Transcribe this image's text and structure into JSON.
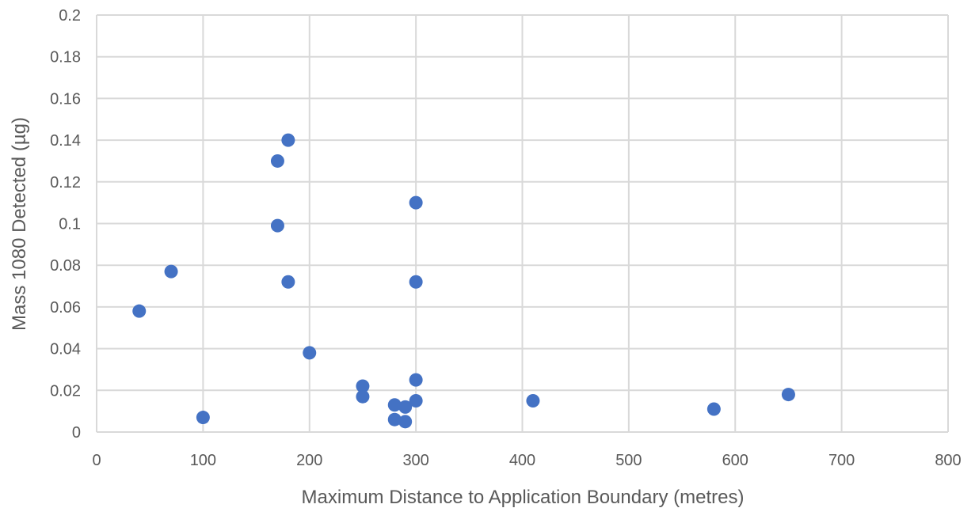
{
  "chart_data": {
    "type": "scatter",
    "title": "",
    "xlabel": "Maximum Distance to Application Boundary (metres)",
    "ylabel": "Mass 1080 Detected (µg)",
    "xlim": [
      0,
      800
    ],
    "ylim": [
      0,
      0.2
    ],
    "x_ticks": [
      "0",
      "100",
      "200",
      "300",
      "400",
      "500",
      "600",
      "700",
      "800"
    ],
    "y_ticks": [
      "0",
      "0.02",
      "0.04",
      "0.06",
      "0.08",
      "0.1",
      "0.12",
      "0.14",
      "0.16",
      "0.18",
      "0.2"
    ],
    "grid": true,
    "legend": "none",
    "marker_color": "#4472c4",
    "series": [
      {
        "points": [
          {
            "x": 40,
            "y": 0.058
          },
          {
            "x": 70,
            "y": 0.077
          },
          {
            "x": 100,
            "y": 0.007
          },
          {
            "x": 170,
            "y": 0.13
          },
          {
            "x": 170,
            "y": 0.099
          },
          {
            "x": 180,
            "y": 0.14
          },
          {
            "x": 180,
            "y": 0.072
          },
          {
            "x": 200,
            "y": 0.038
          },
          {
            "x": 250,
            "y": 0.022
          },
          {
            "x": 250,
            "y": 0.017
          },
          {
            "x": 280,
            "y": 0.013
          },
          {
            "x": 280,
            "y": 0.006
          },
          {
            "x": 290,
            "y": 0.012
          },
          {
            "x": 290,
            "y": 0.005
          },
          {
            "x": 300,
            "y": 0.11
          },
          {
            "x": 300,
            "y": 0.072
          },
          {
            "x": 300,
            "y": 0.025
          },
          {
            "x": 300,
            "y": 0.015
          },
          {
            "x": 410,
            "y": 0.015
          },
          {
            "x": 580,
            "y": 0.011
          },
          {
            "x": 650,
            "y": 0.018
          }
        ]
      }
    ]
  }
}
